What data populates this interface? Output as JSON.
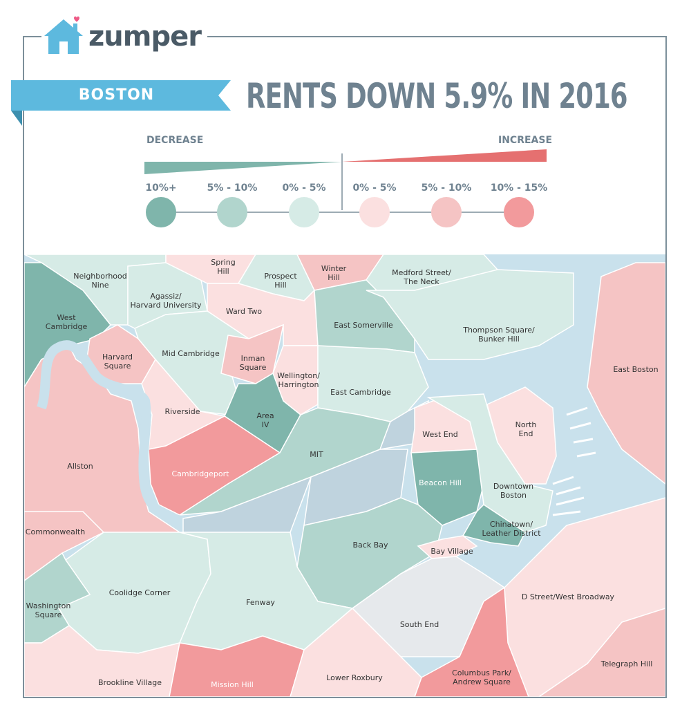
{
  "brand": {
    "name": "zumper",
    "logo_icon": "house-heart-icon"
  },
  "city": "BOSTON",
  "headline": "RENTS DOWN 5.9% IN 2016",
  "legend": {
    "decrease_label": "DECREASE",
    "increase_label": "INCREASE",
    "bins": [
      {
        "label": "10%+",
        "color": "#7fb5ab"
      },
      {
        "label": "5% - 10%",
        "color": "#b1d5cd"
      },
      {
        "label": "0% - 5%",
        "color": "#d6ebe6"
      },
      {
        "label": "0% - 5%",
        "color": "#fbe0e0"
      },
      {
        "label": "5% - 10%",
        "color": "#f5c4c4"
      },
      {
        "label": "10% - 15%",
        "color": "#f29a9c"
      }
    ]
  },
  "colors": {
    "banner": "#5db9de",
    "water": "#c9e1ec",
    "frame": "#7c8f9a",
    "no_data": "#bfd3de"
  },
  "neighborhoods": [
    {
      "name": "Spring Hill",
      "lines": [
        "Spring",
        "Hill"
      ]
    },
    {
      "name": "Neighborhood Nine",
      "lines": [
        "Neighborhood",
        "Nine"
      ]
    },
    {
      "name": "Prospect Hill",
      "lines": [
        "Prospect",
        "Hill"
      ]
    },
    {
      "name": "Winter Hill",
      "lines": [
        "Winter",
        "Hill"
      ]
    },
    {
      "name": "Medford Street/The Neck",
      "lines": [
        "Medford Street/",
        "The Neck"
      ]
    },
    {
      "name": "Agassiz/Harvard University",
      "lines": [
        "Agassiz/",
        "Harvard University"
      ]
    },
    {
      "name": "Ward Two",
      "lines": [
        "Ward Two"
      ]
    },
    {
      "name": "West Cambridge",
      "lines": [
        "West",
        "Cambridge"
      ]
    },
    {
      "name": "East Somerville",
      "lines": [
        "East Somerville"
      ]
    },
    {
      "name": "Thompson Square/Bunker Hill",
      "lines": [
        "Thompson Square/",
        "Bunker Hill"
      ]
    },
    {
      "name": "Harvard Square",
      "lines": [
        "Harvard",
        "Square"
      ]
    },
    {
      "name": "Mid Cambridge",
      "lines": [
        "Mid Cambridge"
      ]
    },
    {
      "name": "Inman Square",
      "lines": [
        "Inman",
        "Square"
      ]
    },
    {
      "name": "East Boston",
      "lines": [
        "East Boston"
      ]
    },
    {
      "name": "Wellington/Harrington",
      "lines": [
        "Wellington/",
        "Harrington"
      ]
    },
    {
      "name": "East Cambridge",
      "lines": [
        "East Cambridge"
      ]
    },
    {
      "name": "Riverside",
      "lines": [
        "Riverside"
      ]
    },
    {
      "name": "Area IV",
      "lines": [
        "Area",
        "IV"
      ]
    },
    {
      "name": "North End",
      "lines": [
        "North",
        "End"
      ]
    },
    {
      "name": "West End",
      "lines": [
        "West End"
      ]
    },
    {
      "name": "Allston",
      "lines": [
        "Allston"
      ]
    },
    {
      "name": "MIT",
      "lines": [
        "MIT"
      ]
    },
    {
      "name": "Cambridgeport",
      "lines": [
        "Cambridgeport"
      ]
    },
    {
      "name": "Beacon Hill",
      "lines": [
        "Beacon Hill"
      ]
    },
    {
      "name": "Downtown Boston",
      "lines": [
        "Downtown",
        "Boston"
      ]
    },
    {
      "name": "Chinatown/Leather District",
      "lines": [
        "Chinatown/",
        "Leather District"
      ]
    },
    {
      "name": "Commonwealth",
      "lines": [
        "Commonwealth"
      ]
    },
    {
      "name": "Back Bay",
      "lines": [
        "Back Bay"
      ]
    },
    {
      "name": "Bay Village",
      "lines": [
        "Bay Village"
      ]
    },
    {
      "name": "Coolidge Corner",
      "lines": [
        "Coolidge Corner"
      ]
    },
    {
      "name": "D Street/West Broadway",
      "lines": [
        "D Street/West Broadway"
      ]
    },
    {
      "name": "Fenway",
      "lines": [
        "Fenway"
      ]
    },
    {
      "name": "Washington Square",
      "lines": [
        "Washington",
        "Square"
      ]
    },
    {
      "name": "South End",
      "lines": [
        "South End"
      ]
    },
    {
      "name": "Telegraph Hill",
      "lines": [
        "Telegraph Hill"
      ]
    },
    {
      "name": "Brookline Village",
      "lines": [
        "Brookline Village"
      ]
    },
    {
      "name": "Mission Hill",
      "lines": [
        "Mission Hill"
      ]
    },
    {
      "name": "Lower Roxbury",
      "lines": [
        "Lower Roxbury"
      ]
    },
    {
      "name": "Columbus Park/Andrew Square",
      "lines": [
        "Columbus Park/",
        "Andrew Square"
      ]
    }
  ]
}
